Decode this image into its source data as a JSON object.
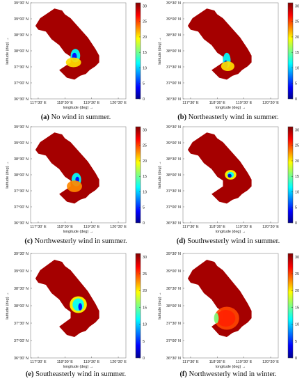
{
  "figure": {
    "x_axis_label": "longitude (deg) →",
    "y_axis_label": "latitude (deg) →",
    "x_ticks": [
      "117°30' E",
      "118°30' E",
      "119°30' E",
      "120°30' E"
    ],
    "y_ticks": [
      "39°30' N",
      "39°00' N",
      "38°30' N",
      "38°00' N",
      "37°30' N",
      "37°00' N",
      "36°30' N"
    ],
    "colorbar_ticks": [
      "30",
      "25",
      "20",
      "15",
      "10",
      "5",
      "0"
    ],
    "colorbar_range": [
      0,
      31
    ]
  },
  "panels": [
    {
      "letter": "(a)",
      "caption": "No wind in summer."
    },
    {
      "letter": "(b)",
      "caption": "Northeasterly wind in summer."
    },
    {
      "letter": "(c)",
      "caption": "Northwesterly wind in summer."
    },
    {
      "letter": "(d)",
      "caption": "Southwesterly wind in summer."
    },
    {
      "letter": "(e)",
      "caption": "Southeasterly wind in summer."
    },
    {
      "letter": "(f)",
      "caption": "Northwesterly wind in winter."
    }
  ],
  "chart_data": [
    {
      "type": "heatmap",
      "panel": "(a)",
      "xlim": [
        "117°30' E",
        "120°30' E"
      ],
      "ylim": [
        "36°30' N",
        "39°30' N"
      ],
      "colorbar": [
        0,
        31
      ],
      "field": "mostly ~30 with low-value plume near river mouth"
    },
    {
      "type": "heatmap",
      "panel": "(b)",
      "xlim": [
        "117°30' E",
        "120°30' E"
      ],
      "ylim": [
        "36°30' N",
        "39°30' N"
      ],
      "colorbar": [
        0,
        31
      ],
      "field": "mostly ~30 with plume pushed south along coast"
    },
    {
      "type": "heatmap",
      "panel": "(c)",
      "xlim": [
        "117°30' E",
        "120°30' E"
      ],
      "ylim": [
        "36°30' N",
        "39°30' N"
      ],
      "colorbar": [
        0,
        31
      ],
      "field": "mostly ~30 with plume near mouth"
    },
    {
      "type": "heatmap",
      "panel": "(d)",
      "xlim": [
        "117°30' E",
        "120°30' E"
      ],
      "ylim": [
        "36°30' N",
        "39°30' N"
      ],
      "colorbar": [
        0,
        31
      ],
      "field": "mostly ~30 with plume spreading northeast"
    },
    {
      "type": "heatmap",
      "panel": "(e)",
      "xlim": [
        "117°30' E",
        "120°30' E"
      ],
      "ylim": [
        "36°30' N",
        "39°30' N"
      ],
      "colorbar": [
        0,
        31
      ],
      "field": "mostly ~30 with large plume to the north of mouth"
    },
    {
      "type": "heatmap",
      "panel": "(f)",
      "xlim": [
        "117°30' E",
        "120°30' E"
      ],
      "ylim": [
        "36°30' N",
        "39°30' N"
      ],
      "colorbar": [
        0,
        31
      ],
      "field": "mostly ~30 with broad reduced-value ring in south bay"
    }
  ]
}
